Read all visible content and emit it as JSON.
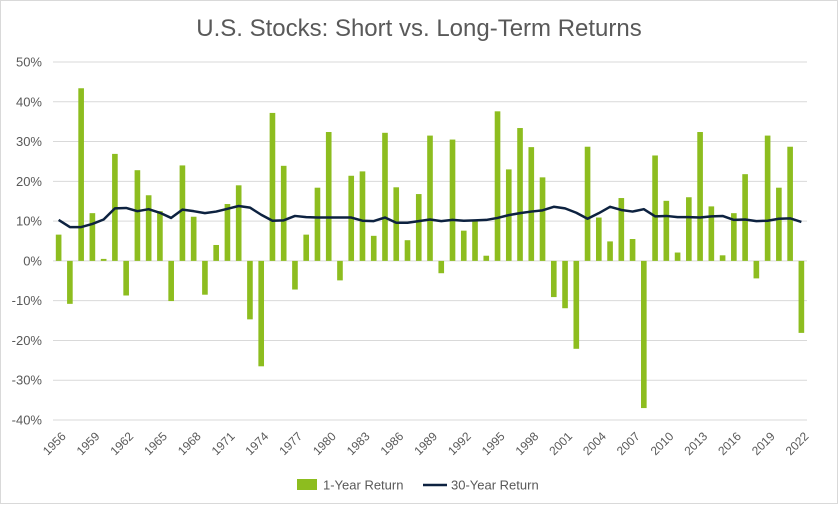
{
  "chart_data": {
    "type": "bar",
    "title": "U.S. Stocks: Short vs. Long-Term Returns",
    "xlabel": "",
    "ylabel": "",
    "ylim": [
      -40,
      50
    ],
    "yticks": [
      -40,
      -30,
      -20,
      -10,
      0,
      10,
      20,
      30,
      40,
      50
    ],
    "ytick_labels": [
      "-40%",
      "-30%",
      "-20%",
      "-10%",
      "0%",
      "10%",
      "20%",
      "30%",
      "40%",
      "50%"
    ],
    "xtick_labels": [
      "1956",
      "1959",
      "1962",
      "1965",
      "1968",
      "1971",
      "1974",
      "1977",
      "1980",
      "1983",
      "1986",
      "1989",
      "1992",
      "1995",
      "1998",
      "2001",
      "2004",
      "2007",
      "2010",
      "2013",
      "2016",
      "2019",
      "2022"
    ],
    "categories": [
      1956,
      1957,
      1958,
      1959,
      1960,
      1961,
      1962,
      1963,
      1964,
      1965,
      1966,
      1967,
      1968,
      1969,
      1970,
      1971,
      1972,
      1973,
      1974,
      1975,
      1976,
      1977,
      1978,
      1979,
      1980,
      1981,
      1982,
      1983,
      1984,
      1985,
      1986,
      1987,
      1988,
      1989,
      1990,
      1991,
      1992,
      1993,
      1994,
      1995,
      1996,
      1997,
      1998,
      1999,
      2000,
      2001,
      2002,
      2003,
      2004,
      2005,
      2006,
      2007,
      2008,
      2009,
      2010,
      2011,
      2012,
      2013,
      2014,
      2015,
      2016,
      2017,
      2018,
      2019,
      2020,
      2021,
      2022
    ],
    "series": [
      {
        "name": "1-Year Return",
        "kind": "bar",
        "color": "#8dbd1f",
        "values": [
          6.6,
          -10.8,
          43.4,
          12.0,
          0.5,
          26.9,
          -8.7,
          22.8,
          16.5,
          12.5,
          -10.1,
          24.0,
          11.1,
          -8.5,
          4.0,
          14.3,
          19.0,
          -14.7,
          -26.5,
          37.2,
          23.9,
          -7.2,
          6.6,
          18.4,
          32.4,
          -4.9,
          21.4,
          22.5,
          6.3,
          32.2,
          18.5,
          5.2,
          16.8,
          31.5,
          -3.1,
          30.5,
          7.6,
          10.1,
          1.3,
          37.6,
          23.0,
          33.4,
          28.6,
          21.0,
          -9.1,
          -11.9,
          -22.1,
          28.7,
          10.9,
          4.9,
          15.8,
          5.5,
          -37.0,
          26.5,
          15.1,
          2.1,
          16.0,
          32.4,
          13.7,
          1.4,
          12.0,
          21.8,
          -4.4,
          31.5,
          18.4,
          28.7,
          -18.1
        ]
      },
      {
        "name": "30-Year Return",
        "kind": "line",
        "color": "#0d2240",
        "values": [
          10.3,
          8.5,
          8.5,
          9.3,
          10.4,
          13.2,
          13.3,
          12.5,
          13.0,
          12.1,
          10.8,
          12.9,
          12.5,
          12.0,
          12.4,
          13.1,
          13.8,
          13.4,
          11.6,
          10.1,
          10.2,
          11.3,
          11.0,
          10.9,
          10.9,
          10.9,
          10.9,
          10.1,
          10.0,
          10.9,
          9.6,
          9.6,
          10.0,
          10.4,
          10.0,
          10.3,
          10.1,
          10.2,
          10.3,
          10.8,
          11.5,
          12.0,
          12.4,
          12.7,
          13.6,
          13.2,
          12.1,
          10.6,
          12.0,
          13.6,
          12.8,
          12.4,
          13.0,
          11.2,
          11.3,
          11.0,
          11.0,
          10.9,
          11.2,
          11.3,
          10.3,
          10.4,
          10.0,
          10.1,
          10.6,
          10.7,
          9.8
        ]
      }
    ],
    "grid": true,
    "legend": {
      "placement": "bottom",
      "entries": [
        "1-Year Return",
        "30-Year Return"
      ]
    }
  }
}
